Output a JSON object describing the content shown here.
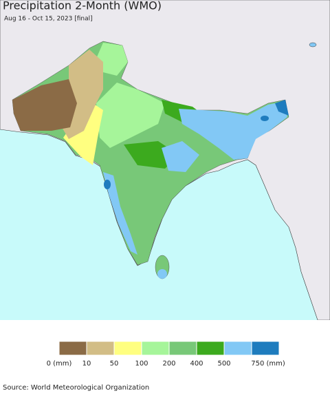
{
  "header": {
    "title": "Precipitation 2-Month (WMO)",
    "subtitle": "Aug 16 - Oct 15, 2023 [final]"
  },
  "legend": {
    "colors": [
      "#8b6b46",
      "#d2bd86",
      "#ffff80",
      "#a6f59a",
      "#78c878",
      "#3caa1e",
      "#82c8f5",
      "#1e7cbe"
    ],
    "labels": [
      "0 (mm)",
      "10",
      "50",
      "100",
      "200",
      "400",
      "500",
      "750 (mm)"
    ]
  },
  "footer": {
    "source": "Source: World Meteorological Organization"
  }
}
